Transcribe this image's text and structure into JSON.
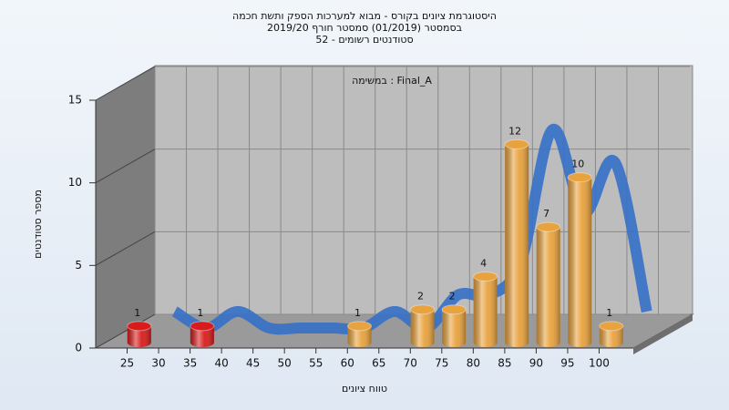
{
  "chart_data": {
    "type": "histogram",
    "title": [
      "היסטוגרמת ציונים בקורס - מבוא למערכות הספק ותשת חכמה",
      "בסמסטר  (01/2019)  סמסטר חורף 2019/20",
      "סטודנטים רשומים - 52"
    ],
    "subtitle": "במשימה : Final_A",
    "xlabel": "טווח ציונים",
    "ylabel": "מספר סטודנטים",
    "bins": [
      25,
      30,
      35,
      40,
      45,
      50,
      55,
      60,
      65,
      70,
      75,
      80,
      85,
      90,
      95,
      100,
      105
    ],
    "counts": [
      1,
      0,
      1,
      0,
      0,
      0,
      0,
      1,
      0,
      2,
      2,
      4,
      12,
      7,
      10,
      1
    ],
    "colors": [
      "#d81c1c",
      "#d81c1c",
      "#d81c1c",
      "#d81c1c",
      "#d81c1c",
      "#d81c1c",
      "#e8a23e",
      "#e8a23e",
      "#e8a23e",
      "#e8a23e",
      "#e8a23e",
      "#e8a23e",
      "#e8a23e",
      "#e8a23e",
      "#e8a23e",
      "#e8a23e"
    ],
    "xlim": [
      20,
      105
    ],
    "xticks": [
      25,
      30,
      35,
      40,
      45,
      50,
      55,
      60,
      65,
      70,
      75,
      80,
      85,
      90,
      95,
      100
    ],
    "ylim": [
      0,
      15
    ],
    "yticks": [
      0,
      5,
      10,
      15
    ],
    "grid": true,
    "curve_color": "#3570c8"
  }
}
